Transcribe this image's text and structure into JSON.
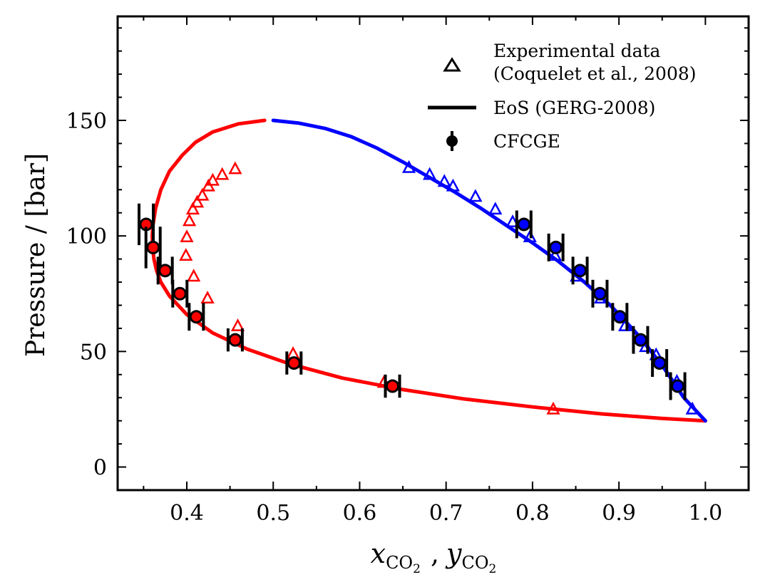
{
  "chart_data": {
    "type": "scatter",
    "xlabel": {
      "x": "x",
      "x_sub": "CO",
      "x_subsub": "2",
      "sep": ",",
      "y": "y",
      "y_sub": "CO",
      "y_subsub": "2"
    },
    "ylabel": "Pressure / [bar]",
    "xlim": [
      0.32,
      1.05
    ],
    "ylim": [
      -10,
      195
    ],
    "xticks": [
      0.4,
      0.5,
      0.6,
      0.7,
      0.8,
      0.9,
      1.0
    ],
    "xtick_labels": [
      "0.4",
      "0.5",
      "0.6",
      "0.7",
      "0.8",
      "0.9",
      "1.0"
    ],
    "yticks": [
      0,
      50,
      100,
      150
    ],
    "ytick_labels": [
      "0",
      "50",
      "100",
      "150"
    ],
    "grid": false,
    "legend_position": "top-right",
    "legend": [
      {
        "marker": "triangle-open",
        "lines": [
          "Experimental data",
          "(Coquelet et al., 2008)"
        ]
      },
      {
        "marker": "line",
        "lines": [
          "EoS (GERG-2008)"
        ]
      },
      {
        "marker": "circle-errorbar",
        "lines": [
          "CFCGE"
        ]
      }
    ],
    "colors": {
      "liquid": "#ff0000",
      "vapor": "#0000ff",
      "cfcge": "#000000"
    },
    "series": [
      {
        "kind": "line",
        "color": "#ff0000",
        "x": [
          0.49,
          0.46,
          0.43,
          0.41,
          0.395,
          0.38,
          0.37,
          0.364,
          0.361,
          0.36,
          0.3605,
          0.362,
          0.365,
          0.37,
          0.38,
          0.4,
          0.43,
          0.47,
          0.52,
          0.58,
          0.65,
          0.72,
          0.8,
          0.88,
          0.95,
          1.0
        ],
        "y": [
          150,
          148.5,
          145,
          140.5,
          135,
          128,
          120,
          112,
          105,
          100,
          95,
          90,
          85,
          80,
          74,
          66,
          58,
          51,
          44.5,
          38.5,
          33.5,
          29.5,
          26,
          23,
          21,
          20
        ]
      },
      {
        "kind": "line",
        "color": "#0000ff",
        "x": [
          0.5,
          0.53,
          0.56,
          0.59,
          0.62,
          0.65,
          0.68,
          0.71,
          0.74,
          0.77,
          0.8,
          0.83,
          0.86,
          0.89,
          0.92,
          0.95,
          0.975,
          1.0
        ],
        "y": [
          150,
          148.8,
          146.5,
          143,
          138,
          132,
          125.5,
          119,
          112,
          104.5,
          97,
          89,
          80,
          70,
          58,
          44,
          30,
          20
        ]
      },
      {
        "kind": "experimental",
        "color": "#ff0000",
        "x": [
          0.399,
          0.4,
          0.403,
          0.407,
          0.412,
          0.418,
          0.425,
          0.43,
          0.441,
          0.456,
          0.408,
          0.424,
          0.459,
          0.523,
          0.628,
          0.824
        ],
        "y": [
          91.5,
          99.5,
          106.5,
          111.5,
          114.5,
          117.5,
          121.5,
          124,
          126.5,
          129,
          82.5,
          73,
          61,
          49,
          36.5,
          25
        ]
      },
      {
        "kind": "experimental",
        "color": "#0000ff",
        "x": [
          0.657,
          0.681,
          0.698,
          0.708,
          0.734,
          0.757,
          0.777,
          0.797,
          0.826,
          0.851,
          0.879,
          0.907,
          0.931,
          0.943,
          0.967,
          0.985
        ],
        "y": [
          129.5,
          126.5,
          123.5,
          121.5,
          117,
          111.5,
          106,
          99.5,
          91.5,
          82.5,
          73,
          61,
          52,
          48.5,
          37,
          25
        ]
      },
      {
        "kind": "cfcge",
        "color": "#ff0000",
        "x": [
          0.353,
          0.361,
          0.375,
          0.392,
          0.411,
          0.456,
          0.524,
          0.638
        ],
        "y": [
          105,
          95,
          85,
          75,
          65,
          55,
          45,
          35
        ],
        "err": [
          9,
          9,
          6,
          6,
          6,
          5,
          5,
          5
        ]
      },
      {
        "kind": "cfcge",
        "color": "#0000ff",
        "x": [
          0.79,
          0.827,
          0.855,
          0.878,
          0.901,
          0.925,
          0.947,
          0.968
        ],
        "y": [
          105,
          95,
          85,
          75,
          65,
          55,
          45,
          35
        ],
        "err": [
          6,
          6,
          6,
          6,
          6,
          6,
          6,
          6
        ]
      }
    ]
  }
}
